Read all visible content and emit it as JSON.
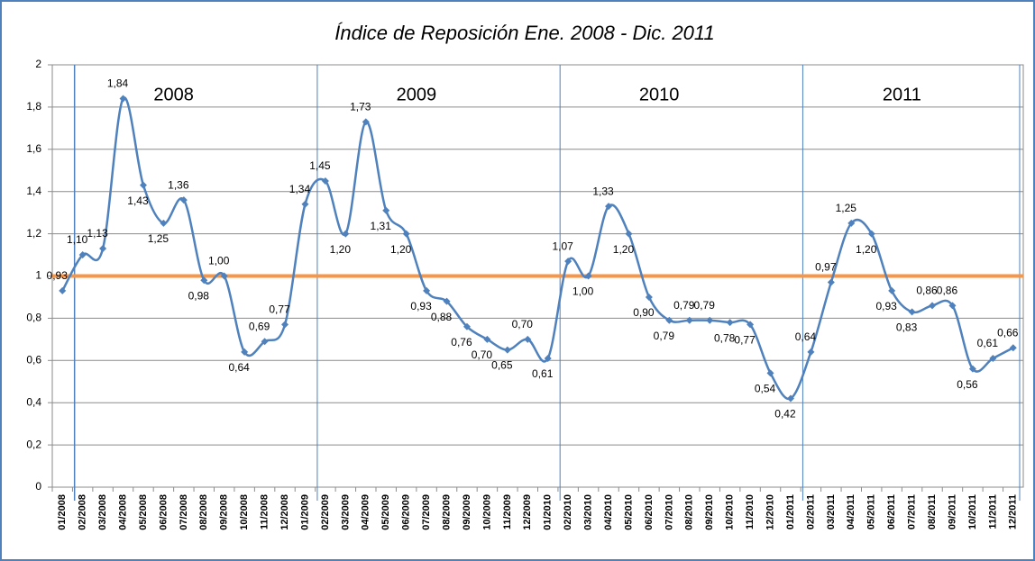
{
  "chart_data": {
    "type": "line",
    "title": "Índice de Reposición Ene. 2008 - Dic. 2011",
    "categories": [
      "01/2008",
      "02/2008",
      "03/2008",
      "04/2008",
      "05/2008",
      "06/2008",
      "07/2008",
      "08/2008",
      "09/2008",
      "10/2008",
      "11/2008",
      "12/2008",
      "01/2009",
      "02/2009",
      "03/2009",
      "04/2009",
      "05/2009",
      "06/2009",
      "07/2009",
      "08/2009",
      "09/2009",
      "10/2009",
      "11/2009",
      "12/2009",
      "01/2010",
      "02/2010",
      "03/2010",
      "04/2010",
      "05/2010",
      "06/2010",
      "07/2010",
      "08/2010",
      "09/2010",
      "10/2010",
      "11/2010",
      "12/2010",
      "01/2011",
      "02/2011",
      "03/2011",
      "04/2011",
      "05/2011",
      "06/2011",
      "07/2011",
      "08/2011",
      "09/2011",
      "10/2011",
      "11/2011",
      "12/2011"
    ],
    "series": [
      {
        "color": "#4f81bd",
        "values": [
          0.93,
          1.1,
          1.13,
          1.84,
          1.43,
          1.25,
          1.36,
          0.98,
          1.0,
          0.64,
          0.69,
          0.77,
          1.34,
          1.45,
          1.2,
          1.73,
          1.31,
          1.2,
          0.93,
          0.88,
          0.76,
          0.7,
          0.65,
          0.7,
          0.61,
          1.07,
          1.0,
          1.33,
          1.2,
          0.9,
          0.79,
          0.79,
          0.79,
          0.78,
          0.77,
          0.54,
          0.42,
          0.64,
          0.97,
          1.25,
          1.2,
          0.93,
          0.83,
          0.86,
          0.86,
          0.56,
          0.61,
          0.66
        ],
        "value_labels": [
          "0,93",
          "1,10",
          "1,13",
          "1,84",
          "1,43",
          "1,25",
          "1,36",
          "0,98",
          "1,00",
          "0,64",
          "0,69",
          "0,77",
          "1,34",
          "1,45",
          "1,20",
          "1,73",
          "1,31",
          "1,20",
          "0,93",
          "0,88",
          "0,76",
          "0,70",
          "0,65",
          "0,70",
          "0,61",
          "1,07",
          "1,00",
          "1,33",
          "1,20",
          "0,90",
          "0,79",
          "0,79",
          "0,79",
          "0,78",
          "0,77",
          "0,54",
          "0,42",
          "0,64",
          "0,97",
          "1,25",
          "1,20",
          "0,93",
          "0,83",
          "0,86",
          "0,86",
          "0,56",
          "0,61",
          "0,66"
        ]
      }
    ],
    "ylim": [
      0,
      2
    ],
    "yticks": [
      0,
      {
        "value": 0.2,
        "label": "0,2"
      },
      {
        "value": 0.4,
        "label": "0,4"
      },
      {
        "value": 0.6,
        "label": "0,6"
      },
      {
        "value": 0.8,
        "label": "0,8"
      },
      1,
      {
        "value": 1.2,
        "label": "1,2"
      },
      {
        "value": 1.4,
        "label": "1,4"
      },
      {
        "value": 1.6,
        "label": "1,6"
      },
      {
        "value": 1.8,
        "label": "1,8"
      },
      2
    ],
    "grid": true,
    "reference_line": {
      "value": 1,
      "color": "#f79646"
    },
    "annotations": [
      "2008",
      "2009",
      "2010",
      "2011"
    ]
  }
}
